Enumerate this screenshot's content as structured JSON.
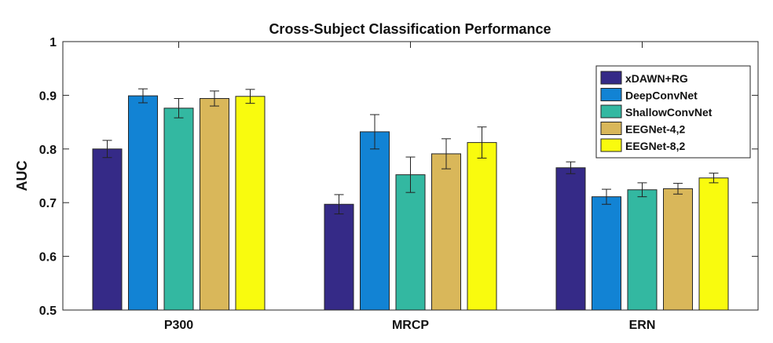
{
  "chart_data": {
    "type": "bar",
    "title": "Cross-Subject Classification Performance",
    "xlabel": "",
    "ylabel": "AUC",
    "ylim": [
      0.5,
      1.0
    ],
    "yticks": [
      "0.5",
      "0.6",
      "0.7",
      "0.8",
      "0.9",
      "1"
    ],
    "grid": false,
    "legend_position": "top-right",
    "categories": [
      "P300",
      "MRCP",
      "ERN"
    ],
    "series": [
      {
        "name": "xDAWN+RG",
        "color": "#352a87",
        "values": [
          0.8,
          0.697,
          0.765
        ],
        "errors": [
          0.016,
          0.018,
          0.011
        ]
      },
      {
        "name": "DeepConvNet",
        "color": "#1283d4",
        "values": [
          0.899,
          0.832,
          0.711
        ],
        "errors": [
          0.013,
          0.032,
          0.014
        ]
      },
      {
        "name": "ShallowConvNet",
        "color": "#33b8a1",
        "values": [
          0.876,
          0.752,
          0.724
        ],
        "errors": [
          0.018,
          0.033,
          0.013
        ]
      },
      {
        "name": "EEGNet-4,2",
        "color": "#d9b75a",
        "values": [
          0.894,
          0.791,
          0.726
        ],
        "errors": [
          0.014,
          0.028,
          0.01
        ]
      },
      {
        "name": "EEGNet-8,2",
        "color": "#f9fb0e",
        "values": [
          0.898,
          0.812,
          0.746
        ],
        "errors": [
          0.013,
          0.029,
          0.009
        ]
      }
    ]
  }
}
